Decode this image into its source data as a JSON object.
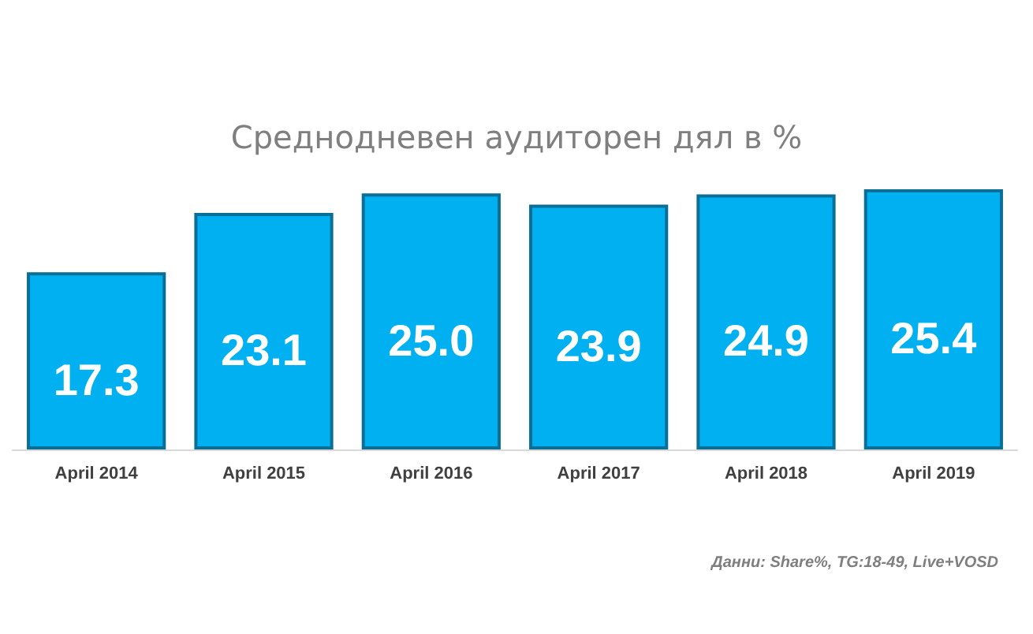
{
  "chart_data": {
    "type": "bar",
    "title": "Среднодневен аудиторен дял в %",
    "categories": [
      "April 2014",
      "April 2015",
      "April 2016",
      "April 2017",
      "April 2018",
      "April 2019"
    ],
    "values": [
      17.3,
      23.1,
      25.0,
      23.9,
      24.9,
      25.4
    ],
    "color": "#00b0f0",
    "value_labels": [
      "17.3",
      "23.1",
      "25.0",
      "23.9",
      "24.9",
      "25.4"
    ],
    "annotations": [
      "Данни: Share%, TG:18-49, Live+VOSD"
    ]
  }
}
